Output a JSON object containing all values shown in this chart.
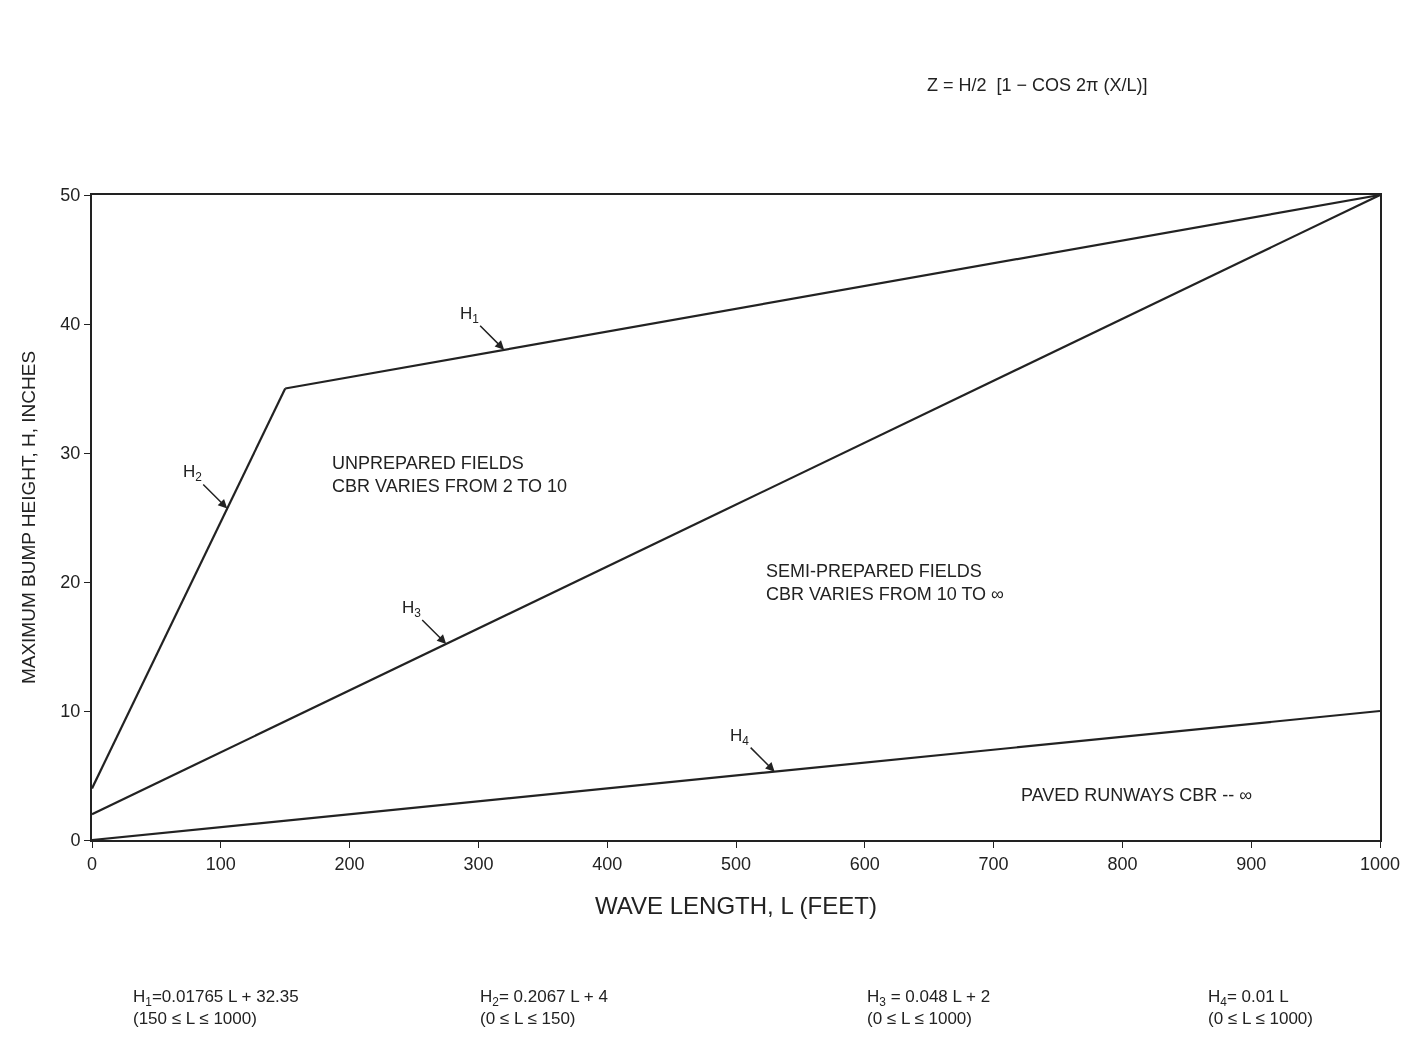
{
  "chart_data": {
    "type": "line",
    "xlabel": "WAVE LENGTH, L (FEET)",
    "ylabel": "MAXIMUM BUMP HEIGHT, H, INCHES",
    "series": [
      {
        "name": "H$_{1}$",
        "color": "#222222",
        "x": [
          150,
          1000
        ],
        "values": [
          35.0,
          50.0
        ]
      },
      {
        "name": "H$_{2}$",
        "color": "#222222",
        "x": [
          0,
          150
        ],
        "values": [
          4,
          35.0
        ]
      },
      {
        "name": "H$_{3}$",
        "color": "#222222",
        "x": [
          0,
          1000
        ],
        "values": [
          2,
          50
        ]
      },
      {
        "name": "H$_{4}$",
        "color": "#222222",
        "x": [
          0,
          1000
        ],
        "values": [
          0,
          10
        ]
      }
    ],
    "xlim": [
      0,
      1000
    ],
    "xticks": [
      0,
      100,
      200,
      300,
      400,
      500,
      600,
      700,
      800,
      900,
      1000
    ],
    "ylim": [
      0,
      50
    ],
    "yticks": [
      0,
      10,
      20,
      30,
      40,
      50
    ],
    "legend": false,
    "marker": "none",
    "line_style": "solid",
    "annotations": [
      "UNPREPARED FIELDS\nCBR VARIES FROM 2 TO 10",
      "SEMI-PREPARED FIELDS\nCBR VARIES FROM 10 TO ∞",
      "PAVED RUNWAYS CBR -- ∞",
      "Z = H/2  [1 − COS 2π (X/L)]",
      "H$_{1}$=0.01765 L + 32.35\n(150 ≤ L ≤ 1000)",
      "H$_{2}$= 0.2067 L + 4\n(0 ≤ L ≤ 150)",
      "H$_{3}$ = 0.048 L + 2\n(0 ≤ L ≤ 1000)",
      "H$_{4}$= 0.01 L\n(0 ≤ L ≤ 1000)"
    ]
  }
}
